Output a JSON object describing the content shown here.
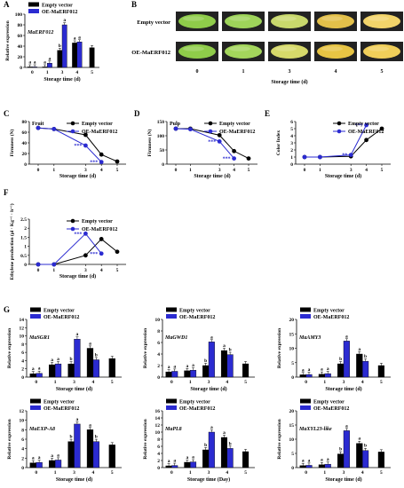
{
  "colors": {
    "ev": "#000000",
    "oe": "#2b2bd1",
    "old": "#888888",
    "photo_green": "#9fd25a",
    "photo_yellow": "#e8c23c"
  },
  "figure": {
    "panel_letters": [
      "A",
      "B",
      "C",
      "D",
      "E",
      "F",
      "G"
    ],
    "legend": {
      "empty": "Empty vector",
      "oe": "OE-MaERF012"
    },
    "photos": {
      "row_labels": [
        "Empty vector",
        "OE-MaERF012"
      ],
      "days": [
        "0",
        "1",
        "3",
        "4",
        "5"
      ],
      "xlabel": "Storage time (d)",
      "colors_empty": [
        "#8fcc4a",
        "#9ed45a",
        "#c8d86c",
        "#e3c04a",
        "#f2d46a"
      ],
      "colors_oe": [
        "#8fcc4a",
        "#a4d65c",
        "#d6d96a",
        "#e7c444",
        "#f0cf5a"
      ]
    }
  },
  "chart_data": [
    {
      "id": "A",
      "type": "bar",
      "gene": "MaERF012",
      "xlabel": "Storage time (d)",
      "ylabel": "Relative expression",
      "categories": [
        "0",
        "1",
        "3",
        "4",
        "5"
      ],
      "ylim": [
        0,
        100
      ],
      "yticks": [
        0,
        20,
        40,
        60,
        80,
        100
      ],
      "series": [
        {
          "name": "Empty vector",
          "values": [
            1,
            1,
            32,
            46,
            37
          ]
        },
        {
          "name": "OE-MaERF012",
          "values": [
            1,
            8,
            80,
            48,
            null
          ]
        }
      ],
      "letters": [
        [
          "a",
          "a",
          "b",
          "a",
          null
        ],
        [
          "a",
          "a",
          "a",
          "a",
          null
        ]
      ]
    },
    {
      "id": "C",
      "type": "line",
      "inset": "Fruit",
      "xlabel": "Storage time (d)",
      "ylabel": "Firmness (N)",
      "x": [
        0,
        1,
        3,
        4,
        5
      ],
      "xticks": [
        0,
        1,
        3,
        4,
        5
      ],
      "ylim": [
        0,
        80
      ],
      "yticks": [
        0,
        20,
        40,
        60,
        80
      ],
      "series": [
        {
          "name": "Empty vector",
          "values": [
            68,
            66,
            55,
            18,
            5
          ]
        },
        {
          "name": "OE-MaERF012",
          "values": [
            68,
            66,
            35,
            4,
            null
          ]
        }
      ],
      "annotations": [
        {
          "x": 3,
          "y": 35,
          "text": "***"
        },
        {
          "x": 4,
          "y": 4,
          "text": "***"
        }
      ]
    },
    {
      "id": "D",
      "type": "line",
      "inset": "Pulp",
      "xlabel": "Storage time (d)",
      "ylabel": "Firmness (N)",
      "x": [
        0,
        1,
        3,
        4,
        5
      ],
      "xticks": [
        0,
        1,
        3,
        4,
        5
      ],
      "ylim": [
        0,
        150
      ],
      "yticks": [
        0,
        50,
        100,
        150
      ],
      "series": [
        {
          "name": "Empty vector",
          "values": [
            125,
            125,
            102,
            46,
            20
          ]
        },
        {
          "name": "OE-MaERF012",
          "values": [
            125,
            123,
            80,
            20,
            null
          ]
        }
      ],
      "annotations": [
        {
          "x": 3,
          "y": 80,
          "text": "***"
        },
        {
          "x": 4,
          "y": 20,
          "text": "***"
        }
      ]
    },
    {
      "id": "E",
      "type": "line",
      "xlabel": "Storage time (d)",
      "ylabel": "Color Index",
      "x": [
        0,
        1,
        3,
        4,
        5
      ],
      "xticks": [
        0,
        1,
        3,
        4,
        5
      ],
      "ylim": [
        0,
        6
      ],
      "yticks": [
        0,
        1,
        2,
        3,
        4,
        5,
        6
      ],
      "series": [
        {
          "name": "Empty vector",
          "values": [
            1,
            1,
            1.1,
            3.4,
            5
          ]
        },
        {
          "name": "OE-MaERF012",
          "values": [
            1,
            1,
            1.3,
            5.5,
            null
          ]
        }
      ],
      "annotations": [
        {
          "x": 3,
          "y": 1.3,
          "text": "**"
        },
        {
          "x": 4,
          "y": 5.5,
          "text": "***"
        }
      ]
    },
    {
      "id": "F",
      "type": "line",
      "xlabel": "Storage time (d)",
      "ylabel": "Ethylene production (μl · Kg⁻¹ · h⁻¹)",
      "x": [
        0,
        1,
        3,
        4,
        5
      ],
      "xticks": [
        0,
        1,
        3,
        4,
        5
      ],
      "ylim": [
        0,
        2.5
      ],
      "yticks": [
        0,
        0.5,
        1,
        1.5,
        2,
        2.5
      ],
      "series": [
        {
          "name": "Empty vector",
          "values": [
            0,
            0,
            0.5,
            1.4,
            0.7
          ]
        },
        {
          "name": "OE-MaERF012",
          "values": [
            0,
            0,
            1.7,
            0.6,
            null
          ]
        }
      ],
      "annotations": [
        {
          "x": 3,
          "y": 1.7,
          "text": "***"
        },
        {
          "x": 4,
          "y": 0.6,
          "text": "***"
        }
      ]
    },
    {
      "id": "G1",
      "type": "bar",
      "gene": "MaSGR1",
      "xlabel": "Storage time (d)",
      "ylabel": "Relative expression",
      "categories": [
        "0",
        "1",
        "3",
        "4",
        "5"
      ],
      "ylim": [
        0,
        14
      ],
      "yticks": [
        0,
        2,
        4,
        6,
        8,
        10,
        12,
        14
      ],
      "series": [
        {
          "name": "Empty vector",
          "values": [
            0.8,
            3,
            3.2,
            7,
            4.5
          ]
        },
        {
          "name": "OE-MaERF012",
          "values": [
            0.9,
            3.2,
            9.2,
            4.2,
            null
          ]
        }
      ],
      "letters": [
        [
          "a",
          "a",
          "b",
          "a",
          null
        ],
        [
          "a",
          "a",
          "a",
          "b",
          null
        ]
      ]
    },
    {
      "id": "G2",
      "type": "bar",
      "gene": "MaGWD1",
      "xlabel": "Storage time (d)",
      "ylabel": "Relative expression",
      "categories": [
        "0",
        "1",
        "3",
        "4",
        "5"
      ],
      "ylim": [
        0,
        10
      ],
      "yticks": [
        0,
        2,
        4,
        6,
        8,
        10
      ],
      "series": [
        {
          "name": "Empty vector",
          "values": [
            0.9,
            1.1,
            2,
            4.6,
            2.3
          ]
        },
        {
          "name": "OE-MaERF012",
          "values": [
            1,
            1.2,
            6.1,
            3.9,
            null
          ]
        }
      ],
      "letters": [
        [
          "a",
          "a",
          "b",
          "a",
          null
        ],
        [
          "a",
          "a",
          "a",
          "b",
          null
        ]
      ]
    },
    {
      "id": "G3",
      "type": "bar",
      "gene": "MaAMY3",
      "xlabel": "Storage time (d)",
      "ylabel": "Relative expression",
      "categories": [
        "0",
        "1",
        "3",
        "4",
        "5"
      ],
      "ylim": [
        0,
        20
      ],
      "yticks": [
        0,
        5,
        10,
        15,
        20
      ],
      "series": [
        {
          "name": "Empty vector",
          "values": [
            0.8,
            1,
            4.6,
            8,
            4
          ]
        },
        {
          "name": "OE-MaERF012",
          "values": [
            0.9,
            1.2,
            12.5,
            5.5,
            null
          ]
        }
      ],
      "letters": [
        [
          "a",
          "a",
          "b",
          "a",
          null
        ],
        [
          "a",
          "a",
          "a",
          "b",
          null
        ]
      ]
    },
    {
      "id": "G4",
      "type": "bar",
      "gene": "MaEXP-A8",
      "xlabel": "Storage time (d)",
      "ylabel": "Relative expression",
      "categories": [
        "0",
        "1",
        "3",
        "4",
        "5"
      ],
      "ylim": [
        0,
        12
      ],
      "yticks": [
        0,
        2,
        4,
        6,
        8,
        10,
        12
      ],
      "series": [
        {
          "name": "Empty vector",
          "values": [
            1,
            1.5,
            5.5,
            8,
            4.8
          ]
        },
        {
          "name": "OE-MaERF012",
          "values": [
            1.1,
            1.6,
            9.2,
            5.5,
            null
          ]
        }
      ],
      "letters": [
        [
          "a",
          "a",
          "b",
          "a",
          null
        ],
        [
          "a",
          "a",
          "a",
          "b",
          null
        ]
      ]
    },
    {
      "id": "G5",
      "type": "bar",
      "gene": "MaPL8",
      "xlabel": "Storage time (Day)",
      "ylabel": "Relative expression",
      "categories": [
        "0",
        "1",
        "3",
        "4",
        "5"
      ],
      "ylim": [
        0,
        16
      ],
      "yticks": [
        0,
        2,
        4,
        6,
        8,
        10,
        12,
        14,
        16
      ],
      "series": [
        {
          "name": "Empty vector",
          "values": [
            0.5,
            1.5,
            5,
            8.5,
            4.5
          ]
        },
        {
          "name": "OE-MaERF012",
          "values": [
            0.6,
            1.6,
            10,
            5.4,
            null
          ]
        }
      ],
      "letters": [
        [
          "a",
          "a",
          "b",
          "a",
          null
        ],
        [
          "a",
          "a",
          "a",
          "b",
          null
        ]
      ]
    },
    {
      "id": "G6",
      "type": "bar",
      "gene": "MaXYL23-like",
      "xlabel": "Storage time (d)",
      "ylabel": "Relative expression",
      "categories": [
        "0",
        "1",
        "3",
        "4",
        "5"
      ],
      "ylim": [
        0,
        20
      ],
      "yticks": [
        0,
        5,
        10,
        15,
        20
      ],
      "series": [
        {
          "name": "Empty vector",
          "values": [
            0.7,
            1,
            4.8,
            8.5,
            5.5
          ]
        },
        {
          "name": "OE-MaERF012",
          "values": [
            0.8,
            1.2,
            13,
            6,
            null
          ]
        }
      ],
      "letters": [
        [
          "a",
          "a",
          "b",
          "a",
          null
        ],
        [
          "a",
          "a",
          "a",
          "b",
          null
        ]
      ]
    }
  ]
}
